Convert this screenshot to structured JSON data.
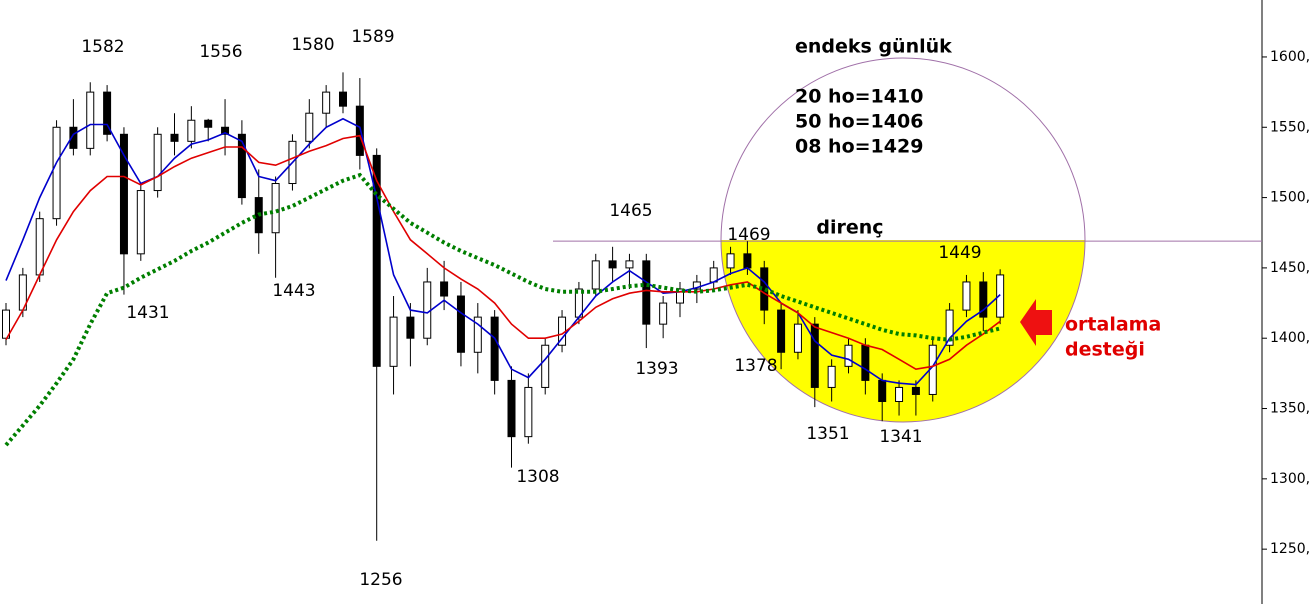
{
  "chart_data": {
    "type": "candlestick",
    "open": [
      1400,
      1420,
      1445,
      1485,
      1550,
      1535,
      1575,
      1545,
      1460,
      1505,
      1545,
      1540,
      1555,
      1550,
      1545,
      1500,
      1475,
      1510,
      1540,
      1560,
      1575,
      1565,
      1530,
      1380,
      1415,
      1400,
      1440,
      1430,
      1390,
      1415,
      1370,
      1330,
      1365,
      1395,
      1415,
      1435,
      1455,
      1450,
      1455,
      1410,
      1425,
      1435,
      1440,
      1450,
      1460,
      1450,
      1420,
      1390,
      1410,
      1365,
      1380,
      1395,
      1370,
      1355,
      1365,
      1360,
      1395,
      1420,
      1440,
      1415
    ],
    "high": [
      1425,
      1450,
      1490,
      1555,
      1570,
      1582,
      1580,
      1550,
      1510,
      1550,
      1560,
      1565,
      1556,
      1570,
      1555,
      1520,
      1515,
      1545,
      1570,
      1580,
      1589,
      1585,
      1535,
      1430,
      1425,
      1450,
      1455,
      1440,
      1425,
      1420,
      1380,
      1375,
      1400,
      1420,
      1440,
      1460,
      1465,
      1460,
      1460,
      1430,
      1440,
      1445,
      1455,
      1465,
      1469,
      1455,
      1425,
      1420,
      1415,
      1385,
      1400,
      1400,
      1375,
      1370,
      1370,
      1400,
      1425,
      1445,
      1447,
      1449
    ],
    "low": [
      1395,
      1415,
      1440,
      1480,
      1530,
      1530,
      1540,
      1431,
      1455,
      1500,
      1530,
      1535,
      1540,
      1530,
      1495,
      1460,
      1443,
      1505,
      1535,
      1550,
      1560,
      1520,
      1256,
      1360,
      1380,
      1395,
      1420,
      1380,
      1375,
      1360,
      1308,
      1325,
      1360,
      1390,
      1410,
      1430,
      1440,
      1435,
      1393,
      1400,
      1415,
      1425,
      1435,
      1445,
      1445,
      1410,
      1378,
      1385,
      1351,
      1355,
      1375,
      1360,
      1341,
      1345,
      1345,
      1355,
      1390,
      1415,
      1405,
      1410
    ],
    "close": [
      1420,
      1445,
      1485,
      1550,
      1535,
      1575,
      1545,
      1460,
      1505,
      1545,
      1540,
      1555,
      1550,
      1545,
      1500,
      1475,
      1510,
      1540,
      1560,
      1575,
      1565,
      1530,
      1380,
      1415,
      1400,
      1440,
      1430,
      1390,
      1415,
      1370,
      1330,
      1365,
      1395,
      1415,
      1435,
      1455,
      1450,
      1455,
      1410,
      1425,
      1435,
      1440,
      1450,
      1460,
      1450,
      1420,
      1390,
      1410,
      1365,
      1380,
      1395,
      1370,
      1355,
      1365,
      1360,
      1395,
      1420,
      1440,
      1415,
      1445
    ],
    "up_color": "#ffffff",
    "down_color": "#000000",
    "ylim": [
      1211,
      1640.5
    ],
    "yticks": [
      {
        "value": 1250,
        "label": "1250,"
      },
      {
        "value": 1300,
        "label": "1300,"
      },
      {
        "value": 1350,
        "label": "1350,"
      },
      {
        "value": 1400,
        "label": "1400,"
      },
      {
        "value": 1450,
        "label": "1450,"
      },
      {
        "value": 1500,
        "label": "1500,"
      },
      {
        "value": 1550,
        "label": "1550,"
      },
      {
        "value": 1600,
        "label": "1600,"
      }
    ],
    "lines": [
      {
        "color": "#0000cc",
        "style": "solid",
        "values": [
          1441,
          1470,
          1500,
          1525,
          1545,
          1552,
          1552,
          1530,
          1510,
          1515,
          1528,
          1538,
          1541,
          1546,
          1540,
          1515,
          1512,
          1525,
          1538,
          1550,
          1556,
          1550,
          1500,
          1445,
          1420,
          1418,
          1427,
          1418,
          1410,
          1400,
          1378,
          1372,
          1385,
          1400,
          1415,
          1430,
          1440,
          1448,
          1440,
          1432,
          1433,
          1436,
          1440,
          1446,
          1450,
          1440,
          1425,
          1418,
          1398,
          1388,
          1385,
          1378,
          1370,
          1368,
          1367,
          1380,
          1400,
          1412,
          1420,
          1431
        ]
      },
      {
        "color": "#e00000",
        "style": "solid",
        "values": [
          1399,
          1420,
          1445,
          1470,
          1490,
          1505,
          1515,
          1515,
          1509,
          1515,
          1522,
          1528,
          1532,
          1536,
          1536,
          1525,
          1523,
          1528,
          1533,
          1537,
          1542,
          1544,
          1512,
          1490,
          1470,
          1460,
          1450,
          1442,
          1435,
          1425,
          1410,
          1400,
          1400,
          1403,
          1412,
          1422,
          1428,
          1432,
          1434,
          1433,
          1433,
          1433,
          1435,
          1438,
          1440,
          1432,
          1425,
          1418,
          1408,
          1404,
          1400,
          1395,
          1392,
          1385,
          1378,
          1380,
          1385,
          1395,
          1403,
          1412
        ]
      },
      {
        "color": "#007f00",
        "style": "dotted",
        "values": [
          1324,
          1338,
          1352,
          1368,
          1385,
          1410,
          1432,
          1436,
          1443,
          1449,
          1455,
          1462,
          1468,
          1475,
          1482,
          1488,
          1490,
          1494,
          1500,
          1506,
          1512,
          1516,
          1502,
          1492,
          1482,
          1475,
          1468,
          1462,
          1457,
          1452,
          1446,
          1440,
          1435,
          1433,
          1433,
          1433,
          1435,
          1437,
          1438,
          1436,
          1434,
          1433,
          1434,
          1436,
          1438,
          1435,
          1430,
          1426,
          1422,
          1418,
          1414,
          1410,
          1406,
          1403,
          1402,
          1400,
          1399,
          1401,
          1404,
          1407
        ]
      }
    ],
    "resistance": {
      "value": 1469,
      "label": "direnç",
      "color": "#a070a8"
    },
    "peak_labels": [
      1582,
      1556,
      1580,
      1589,
      1431,
      1443,
      1256,
      1308,
      1465,
      1393,
      1469,
      1378,
      1351,
      1341,
      1449
    ],
    "notes": [
      "endeks günlük",
      "20 ho=1410",
      "50 ho=1406",
      "08 ho=1429"
    ],
    "callout": [
      "ortalama",
      "desteği"
    ]
  }
}
